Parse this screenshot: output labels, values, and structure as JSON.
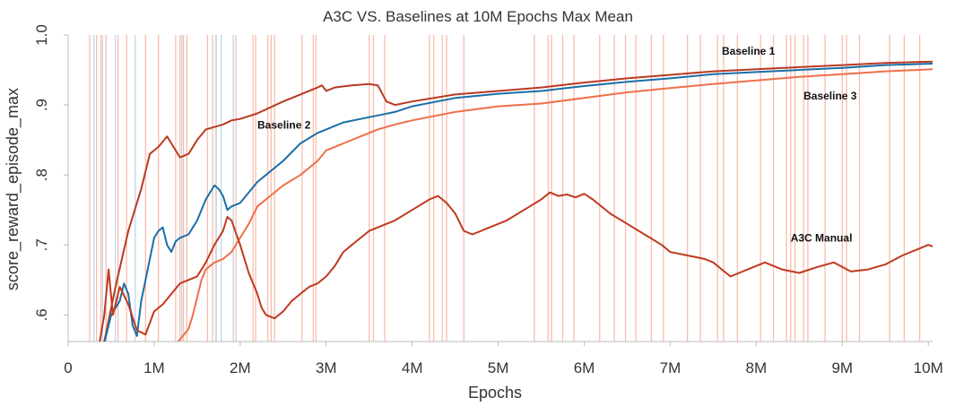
{
  "chart_data": {
    "type": "line",
    "title": "A3C VS. Baselines at 10M Epochs Max Mean",
    "xlabel": "Epochs",
    "ylabel": "score_reward_episode_max",
    "xlim": [
      0,
      10.05
    ],
    "ylim": [
      0.562,
      1.0
    ],
    "x_unit": "M",
    "x_ticks": [
      {
        "value": 0,
        "label": "0"
      },
      {
        "value": 1,
        "label": "1M"
      },
      {
        "value": 2,
        "label": "2M"
      },
      {
        "value": 3,
        "label": "3M"
      },
      {
        "value": 4,
        "label": "4M"
      },
      {
        "value": 5,
        "label": "5M"
      },
      {
        "value": 6,
        "label": "6M"
      },
      {
        "value": 7,
        "label": "7M"
      },
      {
        "value": 8,
        "label": "8M"
      },
      {
        "value": 9,
        "label": "9M"
      },
      {
        "value": 10,
        "label": "10M"
      }
    ],
    "y_ticks": [
      {
        "value": 0.6,
        "label": ".6"
      },
      {
        "value": 0.7,
        "label": ".7"
      },
      {
        "value": 0.8,
        "label": ".8"
      },
      {
        "value": 0.9,
        "label": ".9"
      },
      {
        "value": 1.0,
        "label": "1.0"
      }
    ],
    "grid": false,
    "legend": "none",
    "series": [
      {
        "name": "Baseline 1",
        "color": "#b83a22",
        "points": [
          [
            0.4,
            0.55
          ],
          [
            0.55,
            0.64
          ],
          [
            0.7,
            0.72
          ],
          [
            0.85,
            0.78
          ],
          [
            0.95,
            0.83
          ],
          [
            1.05,
            0.84
          ],
          [
            1.15,
            0.855
          ],
          [
            1.2,
            0.845
          ],
          [
            1.3,
            0.825
          ],
          [
            1.4,
            0.83
          ],
          [
            1.5,
            0.85
          ],
          [
            1.6,
            0.865
          ],
          [
            1.8,
            0.872
          ],
          [
            1.9,
            0.878
          ],
          [
            2.0,
            0.88
          ],
          [
            2.2,
            0.888
          ],
          [
            2.5,
            0.905
          ],
          [
            2.7,
            0.915
          ],
          [
            2.9,
            0.925
          ],
          [
            2.95,
            0.928
          ],
          [
            3.0,
            0.92
          ],
          [
            3.1,
            0.925
          ],
          [
            3.3,
            0.928
          ],
          [
            3.5,
            0.93
          ],
          [
            3.6,
            0.928
          ],
          [
            3.7,
            0.905
          ],
          [
            3.8,
            0.9
          ],
          [
            4.0,
            0.905
          ],
          [
            4.5,
            0.915
          ],
          [
            5.0,
            0.92
          ],
          [
            5.5,
            0.925
          ],
          [
            6.0,
            0.932
          ],
          [
            6.5,
            0.938
          ],
          [
            7.0,
            0.943
          ],
          [
            7.5,
            0.948
          ],
          [
            8.0,
            0.951
          ],
          [
            8.5,
            0.954
          ],
          [
            9.0,
            0.957
          ],
          [
            9.5,
            0.96
          ],
          [
            10.05,
            0.962
          ]
        ]
      },
      {
        "name": "Baseline 2",
        "color": "#1a6fa8",
        "points": [
          [
            0.4,
            0.55
          ],
          [
            0.5,
            0.6
          ],
          [
            0.6,
            0.62
          ],
          [
            0.65,
            0.645
          ],
          [
            0.7,
            0.63
          ],
          [
            0.75,
            0.585
          ],
          [
            0.8,
            0.57
          ],
          [
            0.85,
            0.62
          ],
          [
            0.9,
            0.65
          ],
          [
            0.95,
            0.68
          ],
          [
            1.0,
            0.71
          ],
          [
            1.05,
            0.72
          ],
          [
            1.1,
            0.725
          ],
          [
            1.15,
            0.7
          ],
          [
            1.2,
            0.69
          ],
          [
            1.25,
            0.705
          ],
          [
            1.3,
            0.71
          ],
          [
            1.4,
            0.715
          ],
          [
            1.5,
            0.735
          ],
          [
            1.6,
            0.765
          ],
          [
            1.7,
            0.785
          ],
          [
            1.75,
            0.78
          ],
          [
            1.8,
            0.77
          ],
          [
            1.85,
            0.75
          ],
          [
            1.9,
            0.755
          ],
          [
            2.0,
            0.76
          ],
          [
            2.1,
            0.775
          ],
          [
            2.2,
            0.79
          ],
          [
            2.3,
            0.8
          ],
          [
            2.5,
            0.82
          ],
          [
            2.7,
            0.845
          ],
          [
            2.9,
            0.86
          ],
          [
            3.0,
            0.865
          ],
          [
            3.2,
            0.875
          ],
          [
            3.4,
            0.88
          ],
          [
            3.6,
            0.885
          ],
          [
            3.8,
            0.89
          ],
          [
            4.0,
            0.898
          ],
          [
            4.5,
            0.91
          ],
          [
            5.0,
            0.916
          ],
          [
            5.5,
            0.92
          ],
          [
            6.0,
            0.927
          ],
          [
            6.5,
            0.933
          ],
          [
            7.0,
            0.938
          ],
          [
            7.5,
            0.944
          ],
          [
            8.0,
            0.947
          ],
          [
            8.5,
            0.95
          ],
          [
            9.0,
            0.953
          ],
          [
            9.5,
            0.957
          ],
          [
            10.05,
            0.959
          ]
        ]
      },
      {
        "name": "Baseline 3",
        "color": "#ef6f4a",
        "points": [
          [
            1.2,
            0.55
          ],
          [
            1.3,
            0.565
          ],
          [
            1.4,
            0.58
          ],
          [
            1.45,
            0.6
          ],
          [
            1.5,
            0.625
          ],
          [
            1.55,
            0.65
          ],
          [
            1.6,
            0.665
          ],
          [
            1.7,
            0.675
          ],
          [
            1.8,
            0.68
          ],
          [
            1.9,
            0.69
          ],
          [
            2.0,
            0.71
          ],
          [
            2.1,
            0.73
          ],
          [
            2.2,
            0.755
          ],
          [
            2.3,
            0.765
          ],
          [
            2.5,
            0.785
          ],
          [
            2.7,
            0.8
          ],
          [
            2.9,
            0.82
          ],
          [
            3.0,
            0.835
          ],
          [
            3.2,
            0.845
          ],
          [
            3.4,
            0.855
          ],
          [
            3.6,
            0.865
          ],
          [
            3.8,
            0.872
          ],
          [
            4.0,
            0.878
          ],
          [
            4.5,
            0.89
          ],
          [
            5.0,
            0.898
          ],
          [
            5.5,
            0.902
          ],
          [
            6.0,
            0.91
          ],
          [
            6.5,
            0.918
          ],
          [
            7.0,
            0.924
          ],
          [
            7.5,
            0.93
          ],
          [
            8.0,
            0.935
          ],
          [
            8.5,
            0.94
          ],
          [
            9.0,
            0.944
          ],
          [
            9.5,
            0.948
          ],
          [
            10.05,
            0.951
          ]
        ]
      },
      {
        "name": "A3C Manual",
        "color": "#c0391f",
        "points": [
          [
            0.35,
            0.55
          ],
          [
            0.42,
            0.6
          ],
          [
            0.47,
            0.665
          ],
          [
            0.52,
            0.6
          ],
          [
            0.6,
            0.64
          ],
          [
            0.7,
            0.615
          ],
          [
            0.8,
            0.578
          ],
          [
            0.9,
            0.572
          ],
          [
            1.0,
            0.605
          ],
          [
            1.1,
            0.615
          ],
          [
            1.2,
            0.63
          ],
          [
            1.3,
            0.645
          ],
          [
            1.4,
            0.65
          ],
          [
            1.5,
            0.655
          ],
          [
            1.6,
            0.675
          ],
          [
            1.7,
            0.7
          ],
          [
            1.8,
            0.72
          ],
          [
            1.85,
            0.74
          ],
          [
            1.9,
            0.735
          ],
          [
            2.0,
            0.7
          ],
          [
            2.1,
            0.66
          ],
          [
            2.2,
            0.63
          ],
          [
            2.25,
            0.61
          ],
          [
            2.3,
            0.6
          ],
          [
            2.4,
            0.595
          ],
          [
            2.5,
            0.605
          ],
          [
            2.6,
            0.62
          ],
          [
            2.7,
            0.63
          ],
          [
            2.8,
            0.64
          ],
          [
            2.9,
            0.645
          ],
          [
            3.0,
            0.655
          ],
          [
            3.1,
            0.67
          ],
          [
            3.2,
            0.69
          ],
          [
            3.3,
            0.7
          ],
          [
            3.4,
            0.71
          ],
          [
            3.5,
            0.72
          ],
          [
            3.6,
            0.725
          ],
          [
            3.7,
            0.73
          ],
          [
            3.8,
            0.735
          ],
          [
            4.0,
            0.75
          ],
          [
            4.2,
            0.765
          ],
          [
            4.3,
            0.77
          ],
          [
            4.4,
            0.76
          ],
          [
            4.5,
            0.745
          ],
          [
            4.6,
            0.72
          ],
          [
            4.7,
            0.715
          ],
          [
            4.9,
            0.725
          ],
          [
            5.1,
            0.735
          ],
          [
            5.3,
            0.75
          ],
          [
            5.5,
            0.765
          ],
          [
            5.6,
            0.775
          ],
          [
            5.7,
            0.77
          ],
          [
            5.8,
            0.772
          ],
          [
            5.9,
            0.768
          ],
          [
            6.0,
            0.773
          ],
          [
            6.1,
            0.765
          ],
          [
            6.3,
            0.745
          ],
          [
            6.5,
            0.73
          ],
          [
            6.7,
            0.715
          ],
          [
            6.9,
            0.7
          ],
          [
            7.0,
            0.69
          ],
          [
            7.2,
            0.685
          ],
          [
            7.4,
            0.68
          ],
          [
            7.5,
            0.675
          ],
          [
            7.6,
            0.665
          ],
          [
            7.7,
            0.655
          ],
          [
            7.8,
            0.66
          ],
          [
            7.9,
            0.665
          ],
          [
            8.1,
            0.675
          ],
          [
            8.3,
            0.665
          ],
          [
            8.5,
            0.66
          ],
          [
            8.7,
            0.668
          ],
          [
            8.9,
            0.675
          ],
          [
            9.1,
            0.662
          ],
          [
            9.3,
            0.665
          ],
          [
            9.5,
            0.672
          ],
          [
            9.7,
            0.685
          ],
          [
            9.9,
            0.695
          ],
          [
            10.0,
            0.7
          ],
          [
            10.05,
            0.698
          ]
        ]
      }
    ],
    "spike_lines": {
      "orange": {
        "color": "#f6a892",
        "x": [
          0.25,
          0.33,
          0.38,
          0.44,
          0.58,
          0.68,
          0.9,
          1.05,
          1.25,
          1.3,
          1.34,
          1.38,
          1.62,
          1.68,
          1.72,
          1.95,
          2.15,
          2.18,
          2.32,
          2.36,
          2.4,
          2.72,
          2.85,
          2.88,
          3.5,
          3.55,
          3.68,
          4.2,
          4.25,
          4.35,
          4.4,
          4.6,
          5.42,
          5.58,
          5.62,
          5.75,
          5.88,
          6.18,
          6.35,
          6.48,
          6.6,
          6.78,
          6.92,
          7.2,
          7.35,
          7.55,
          7.62,
          7.78,
          8.05,
          8.2,
          8.35,
          8.4,
          8.45,
          8.55,
          8.6,
          8.8,
          9.0,
          9.05,
          9.2,
          9.55,
          9.72,
          9.9
        ]
      },
      "blue": {
        "color": "#a9cde4",
        "x": [
          0.3,
          0.4,
          0.55,
          0.78,
          1.32,
          1.72,
          1.78,
          1.92
        ]
      }
    },
    "annotations": [
      {
        "text": "Baseline 1",
        "x": 7.6,
        "y": 0.972
      },
      {
        "text": "Baseline 2",
        "x": 2.2,
        "y": 0.866
      },
      {
        "text": "Baseline 3",
        "x": 8.55,
        "y": 0.908
      },
      {
        "text": "A3C Manual",
        "x": 8.4,
        "y": 0.705
      }
    ]
  }
}
